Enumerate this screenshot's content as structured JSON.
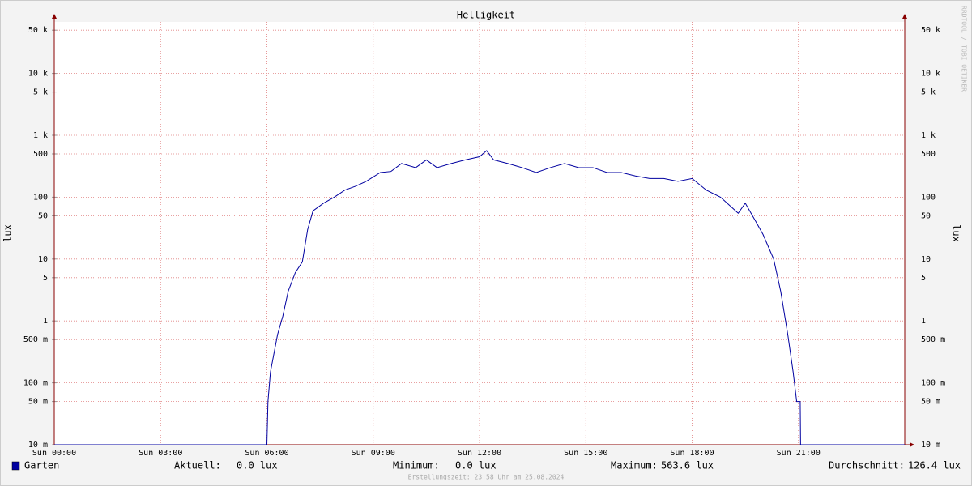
{
  "chart_data": {
    "type": "line",
    "log_scale": true,
    "grid": true,
    "title": "Helligkeit",
    "ylabel": "lux",
    "watermark": "RRDTOOL / TOBI OETIKER",
    "footer": "Erstellungszeit: 23:58 Uhr am 25.08.2024",
    "xlim": [
      0,
      24
    ],
    "xticks": [
      {
        "value": 0,
        "label": "Sun 00:00"
      },
      {
        "value": 3,
        "label": "Sun 03:00"
      },
      {
        "value": 6,
        "label": "Sun 06:00"
      },
      {
        "value": 9,
        "label": "Sun 09:00"
      },
      {
        "value": 12,
        "label": "Sun 12:00"
      },
      {
        "value": 15,
        "label": "Sun 15:00"
      },
      {
        "value": 18,
        "label": "Sun 18:00"
      },
      {
        "value": 21,
        "label": "Sun 21:00"
      }
    ],
    "ylim": [
      0.01,
      68000
    ],
    "yticks": [
      {
        "value": 0.01,
        "label": "10 m"
      },
      {
        "value": 0.05,
        "label": "50 m"
      },
      {
        "value": 0.1,
        "label": "100 m"
      },
      {
        "value": 0.5,
        "label": "500 m"
      },
      1,
      5,
      10,
      50,
      100,
      500,
      {
        "value": 1000,
        "label": "1 k"
      },
      {
        "value": 5000,
        "label": "5 k"
      },
      {
        "value": 10000,
        "label": "10 k"
      },
      {
        "value": 50000,
        "label": "50 k"
      }
    ],
    "x": [
      0,
      6.0,
      6.03,
      6.1,
      6.2,
      6.3,
      6.45,
      6.6,
      6.8,
      7.0,
      7.15,
      7.3,
      7.6,
      7.9,
      8.2,
      8.5,
      8.8,
      9.2,
      9.5,
      9.8,
      10.2,
      10.5,
      10.8,
      11.2,
      11.6,
      12.0,
      12.2,
      12.4,
      12.8,
      13.2,
      13.6,
      14.0,
      14.4,
      14.8,
      15.2,
      15.6,
      16.0,
      16.4,
      16.8,
      17.2,
      17.6,
      18.0,
      18.4,
      18.8,
      19.1,
      19.3,
      19.5,
      19.8,
      20.0,
      20.3,
      20.5,
      20.7,
      20.85,
      20.95,
      21.05,
      21.06,
      24
    ],
    "series": [
      {
        "name": "Garten",
        "color": "#0000a0",
        "axis": "y",
        "values": [
          0.01,
          0.01,
          0.05,
          0.15,
          0.3,
          0.6,
          1.2,
          3,
          6,
          9,
          30,
          60,
          80,
          100,
          130,
          150,
          180,
          250,
          260,
          350,
          300,
          400,
          300,
          350,
          400,
          450,
          563.6,
          400,
          350,
          300,
          250,
          300,
          350,
          300,
          300,
          250,
          250,
          220,
          200,
          200,
          180,
          200,
          130,
          100,
          70,
          55,
          80,
          40,
          25,
          10,
          3,
          0.6,
          0.15,
          0.05,
          0.05,
          0.01,
          0.01
        ]
      }
    ],
    "legend": {
      "aktuell_label": "Aktuell:",
      "aktuell": "0.0 lux",
      "minimum_label": "Minimum:",
      "minimum": "0.0 lux",
      "maximum_label": "Maximum:",
      "maximum": "563.6 lux",
      "durchschnitt_label": "Durchschnitt:",
      "durchschnitt": "126.4 lux"
    }
  }
}
